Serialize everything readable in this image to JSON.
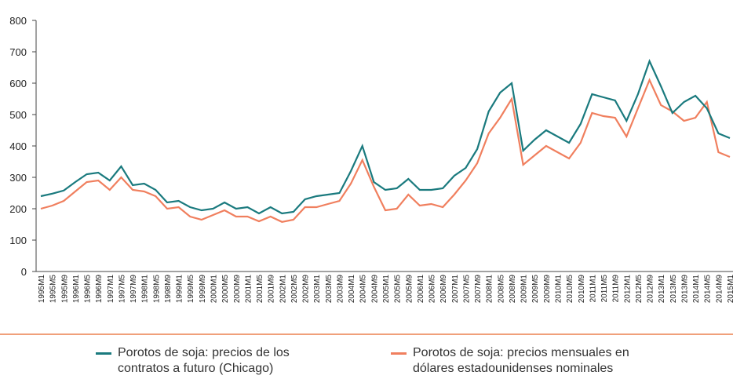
{
  "chart_data": {
    "type": "line",
    "categories": [
      "1995M1",
      "1995M5",
      "1995M9",
      "1996M1",
      "1996M5",
      "1996M9",
      "1997M1",
      "1997M5",
      "1997M9",
      "1998M1",
      "1998M5",
      "1998M9",
      "1999M1",
      "1999M5",
      "1999M9",
      "2000M1",
      "2000M5",
      "2000M9",
      "2001M1",
      "2001M5",
      "2001M9",
      "2002M1",
      "2002M5",
      "2002M9",
      "2003M1",
      "2003M5",
      "2003M9",
      "2004M1",
      "2004M5",
      "2004M9",
      "2005M1",
      "2005M5",
      "2005M9",
      "2006M1",
      "2006M5",
      "2006M9",
      "2007M1",
      "2007M5",
      "2007M9",
      "2008M1",
      "2008M5",
      "2008M9",
      "2009M1",
      "2009M5",
      "2009M9",
      "2010M1",
      "2010M5",
      "2010M9",
      "2011M1",
      "2011M5",
      "2011M9",
      "2012M1",
      "2012M5",
      "2012M9",
      "2013M1",
      "2013M5",
      "2013M9",
      "2014M1",
      "2014M5",
      "2014M9",
      "2015M1"
    ],
    "series": [
      {
        "name": "Porotos de soja: precios de los contratos a futuro (Chicago)",
        "color": "#1a7a7e",
        "values": [
          240,
          248,
          258,
          285,
          310,
          315,
          290,
          335,
          275,
          280,
          260,
          220,
          225,
          205,
          195,
          200,
          220,
          200,
          205,
          185,
          205,
          185,
          190,
          230,
          240,
          245,
          250,
          320,
          400,
          285,
          260,
          265,
          295,
          260,
          260,
          265,
          305,
          330,
          390,
          510,
          570,
          600,
          385,
          420,
          450,
          430,
          410,
          470,
          565,
          555,
          545,
          480,
          565,
          670,
          590,
          505,
          540,
          560,
          520,
          440,
          425
        ]
      },
      {
        "name": "Porotos de soja: precios mensuales en dólares estadounidenses nominales",
        "color": "#f07f5e",
        "values": [
          200,
          210,
          225,
          255,
          285,
          290,
          260,
          300,
          260,
          255,
          240,
          200,
          205,
          175,
          165,
          180,
          195,
          175,
          175,
          160,
          175,
          158,
          165,
          205,
          205,
          215,
          225,
          280,
          355,
          270,
          195,
          200,
          245,
          210,
          215,
          205,
          245,
          290,
          345,
          440,
          490,
          550,
          340,
          370,
          400,
          380,
          360,
          410,
          505,
          495,
          490,
          430,
          520,
          610,
          530,
          510,
          480,
          490,
          540,
          380,
          365
        ]
      }
    ],
    "ylim": [
      0,
      800
    ],
    "yticks": [
      0,
      100,
      200,
      300,
      400,
      500,
      600,
      700,
      800
    ]
  }
}
